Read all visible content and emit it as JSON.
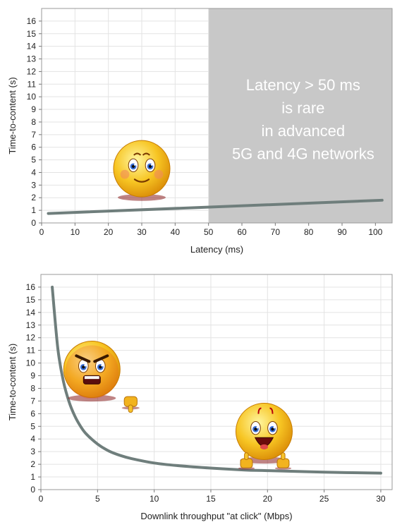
{
  "chart_data": [
    {
      "type": "line",
      "xlabel": "Latency (ms)",
      "ylabel": "Time-to-content (s)",
      "xlim": [
        0,
        105
      ],
      "ylim": [
        0,
        17
      ],
      "xticks": [
        0,
        10,
        20,
        30,
        40,
        50,
        60,
        70,
        80,
        90,
        100
      ],
      "yticks": [
        0,
        1,
        2,
        3,
        4,
        5,
        6,
        7,
        8,
        9,
        10,
        11,
        12,
        13,
        14,
        15,
        16
      ],
      "grid": true,
      "series": [
        {
          "x": [
            2,
            102
          ],
          "y": [
            0.75,
            1.8
          ]
        }
      ],
      "shaded_region": {
        "x_from": 50,
        "x_to": 105,
        "color": "#c8c8c8"
      },
      "annotation": [
        "Latency > 50 ms",
        "is rare",
        "in advanced",
        "5G and 4G networks"
      ],
      "emojis": [
        {
          "icon": "smiling-face-emoji",
          "x": 30,
          "y": 4.3
        }
      ]
    },
    {
      "type": "line",
      "xlabel": "Downlink throughput \"at click\" (Mbps)",
      "ylabel": "Time-to-content (s)",
      "xlim": [
        0,
        31
      ],
      "ylim": [
        0,
        17
      ],
      "xticks": [
        0,
        5,
        10,
        15,
        20,
        25,
        30
      ],
      "yticks": [
        0,
        1,
        2,
        3,
        4,
        5,
        6,
        7,
        8,
        9,
        10,
        11,
        12,
        13,
        14,
        15,
        16
      ],
      "grid": true,
      "series": [
        {
          "x": [
            1,
            1.5,
            2,
            2.5,
            3,
            3.5,
            4,
            5,
            6,
            7,
            8,
            10,
            12,
            15,
            18,
            20,
            25,
            30
          ],
          "y": [
            16,
            11.1,
            8.5,
            6.9,
            5.8,
            5.0,
            4.4,
            3.6,
            3.05,
            2.7,
            2.45,
            2.1,
            1.9,
            1.7,
            1.55,
            1.5,
            1.38,
            1.3
          ]
        }
      ],
      "emojis": [
        {
          "icon": "angry-thumbs-down-emoji",
          "x": 4.5,
          "y": 9.5
        },
        {
          "icon": "happy-thumbs-up-emoji",
          "x": 19.7,
          "y": 4.6
        }
      ]
    }
  ]
}
